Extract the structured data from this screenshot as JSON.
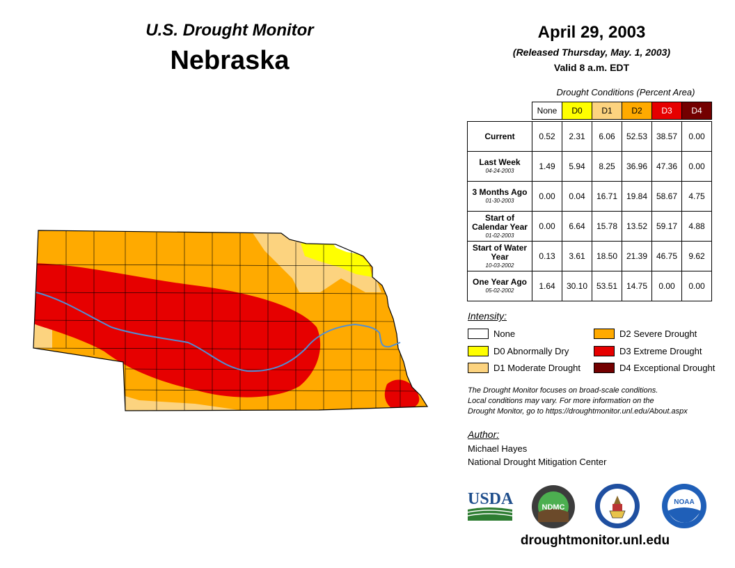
{
  "header": {
    "monitor_title": "U.S. Drought Monitor",
    "state": "Nebraska",
    "date": "April 29, 2003",
    "released": "(Released Thursday, May. 1, 2003)",
    "valid": "Valid 8 a.m. EDT"
  },
  "table": {
    "title": "Drought Conditions (Percent Area)",
    "columns": [
      "None",
      "D0",
      "D1",
      "D2",
      "D3",
      "D4"
    ],
    "rows": [
      {
        "label": "Current",
        "date": "",
        "values": [
          "0.52",
          "2.31",
          "6.06",
          "52.53",
          "38.57",
          "0.00"
        ]
      },
      {
        "label": "Last Week",
        "date": "04-24-2003",
        "values": [
          "1.49",
          "5.94",
          "8.25",
          "36.96",
          "47.36",
          "0.00"
        ]
      },
      {
        "label": "3 Months Ago",
        "date": "01-30-2003",
        "values": [
          "0.00",
          "0.04",
          "16.71",
          "19.84",
          "58.67",
          "4.75"
        ]
      },
      {
        "label": "Start of Calendar Year",
        "date": "01-02-2003",
        "values": [
          "0.00",
          "6.64",
          "15.78",
          "13.52",
          "59.17",
          "4.88"
        ]
      },
      {
        "label": "Start of Water Year",
        "date": "10-03-2002",
        "values": [
          "0.13",
          "3.61",
          "18.50",
          "21.39",
          "46.75",
          "9.62"
        ]
      },
      {
        "label": "One Year Ago",
        "date": "05-02-2002",
        "values": [
          "1.64",
          "30.10",
          "53.51",
          "14.75",
          "0.00",
          "0.00"
        ]
      }
    ]
  },
  "legend": {
    "title": "Intensity:",
    "items": [
      {
        "label": "None",
        "color": "#ffffff"
      },
      {
        "label": "D0 Abnormally Dry",
        "color": "#ffff00"
      },
      {
        "label": "D1 Moderate Drought",
        "color": "#fcd37f"
      },
      {
        "label": "D2 Severe Drought",
        "color": "#ffaa00"
      },
      {
        "label": "D3 Extreme Drought",
        "color": "#e60000"
      },
      {
        "label": "D4 Exceptional Drought",
        "color": "#730000"
      }
    ]
  },
  "disclaimer": [
    "The Drought Monitor focuses on broad-scale conditions.",
    "Local conditions may vary. For more information on the",
    "Drought Monitor, go to https://droughtmonitor.unl.edu/About.aspx"
  ],
  "author": {
    "title": "Author:",
    "name": "Michael Hayes",
    "org": "National Drought Mitigation Center"
  },
  "logos": {
    "usda": "USDA",
    "ndmc": "NDMC",
    "noaa": "NOAA",
    "doc": "commerce-seal"
  },
  "website": "droughtmonitor.unl.edu",
  "colors": {
    "none": "#ffffff",
    "d0": "#ffff00",
    "d1": "#fcd37f",
    "d2": "#ffaa00",
    "d3": "#e60000",
    "d4": "#730000",
    "river": "#4f8fd6"
  }
}
